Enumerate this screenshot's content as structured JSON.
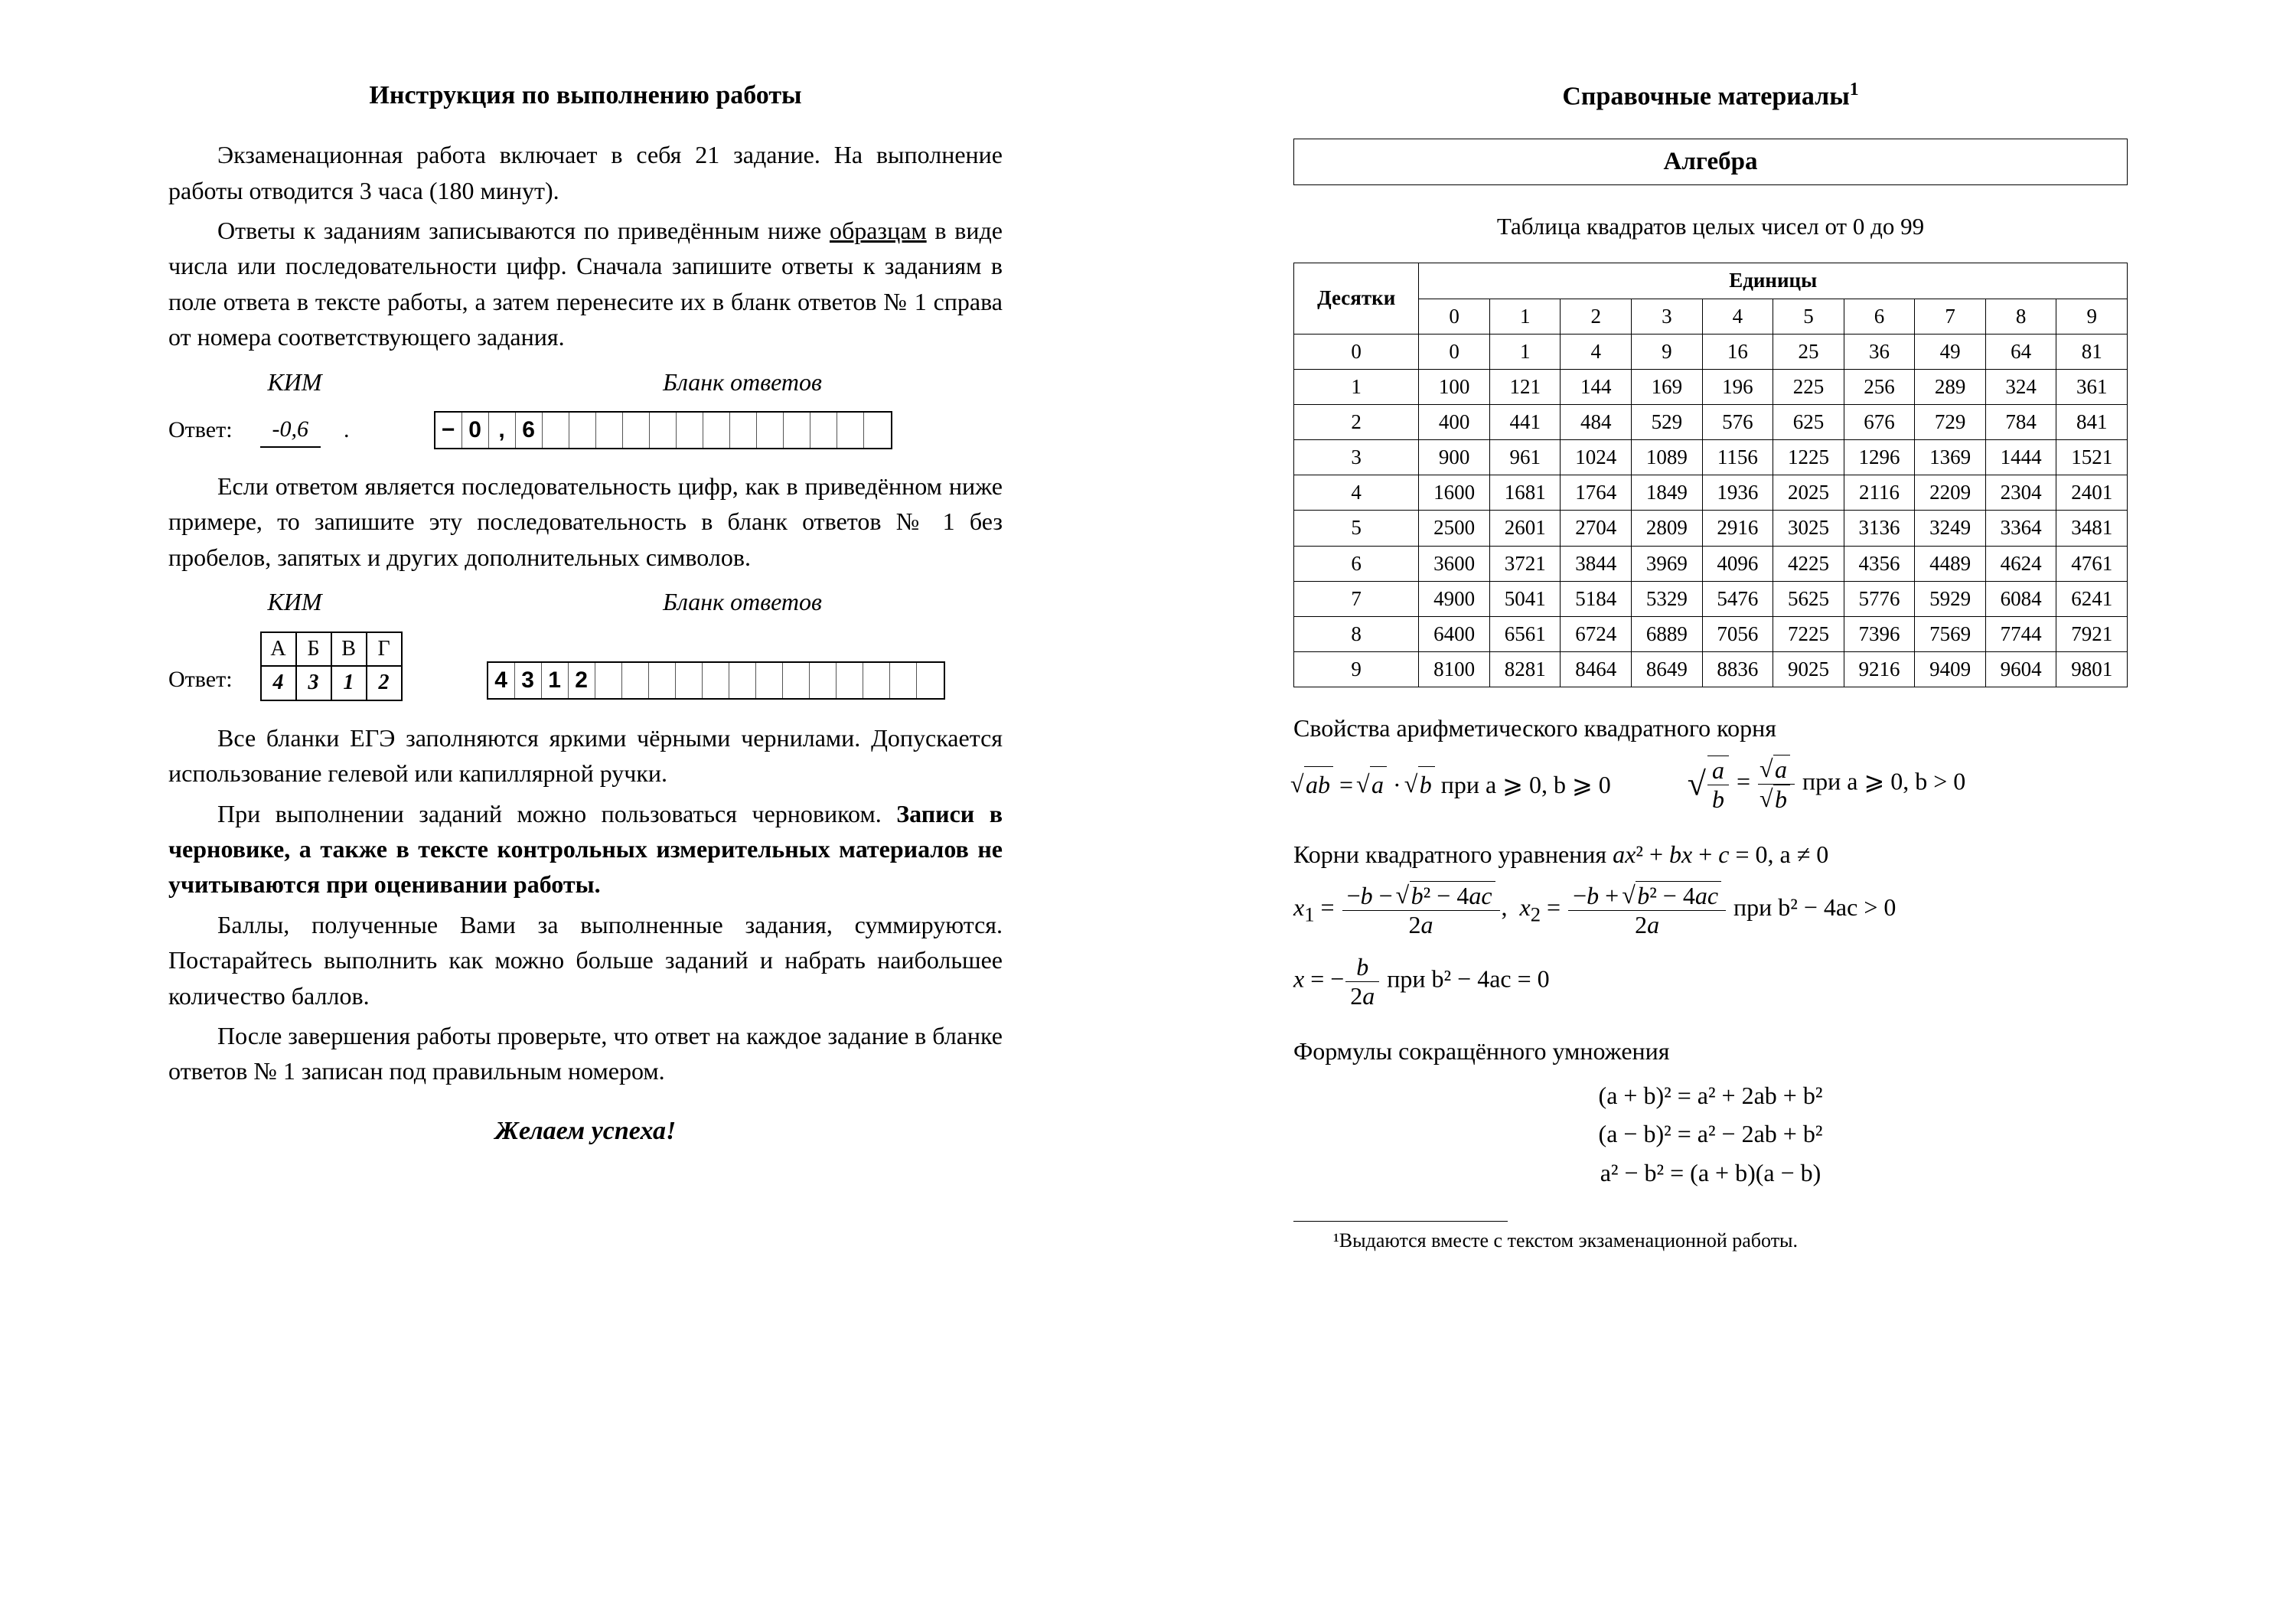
{
  "left": {
    "title": "Инструкция по выполнению работы",
    "p1": "Экзаменационная работа включает в себя 21 задание. На выполнение работы отводится 3 часа (180 минут).",
    "p2a": "Ответы к заданиям записываются по приведённым ниже ",
    "p2underlined": "образцам",
    "p2b": " в виде числа или последовательности цифр. Сначала запишите ответы к заданиям в поле ответа в тексте работы, а затем перенесите их в бланк ответов № 1 справа от номера соответствующего задания.",
    "kim_label": "КИМ",
    "blank_label": "Бланк ответов",
    "answer_label": "Ответ:",
    "answer1_value": "-0,6",
    "blank1_cells": [
      "−",
      "0",
      ",",
      "6",
      "",
      "",
      "",
      "",
      "",
      "",
      "",
      "",
      "",
      "",
      "",
      "",
      ""
    ],
    "p3": "Если ответом является последовательность цифр, как в приведённом ниже примере, то запишите эту последовательность в бланк ответов № 1 без пробелов, запятых и других дополнительных символов.",
    "abvg_headers": [
      "А",
      "Б",
      "В",
      "Г"
    ],
    "abvg_values": [
      "4",
      "3",
      "1",
      "2"
    ],
    "blank2_cells": [
      "4",
      "3",
      "1",
      "2",
      "",
      "",
      "",
      "",
      "",
      "",
      "",
      "",
      "",
      "",
      "",
      "",
      ""
    ],
    "p4": "Все бланки ЕГЭ заполняются яркими чёрными чернилами. Допускается использование гелевой или капиллярной ручки.",
    "p5a": "При выполнении заданий можно пользоваться черновиком. ",
    "p5bold": "Записи в черновике, а также в тексте контрольных измерительных материалов не учитываются при оценивании работы.",
    "p6": "Баллы, полученные Вами за выполненные задания, суммируются. Постарайтесь выполнить как можно больше заданий и набрать наибольшее количество баллов.",
    "p7": "После завершения работы проверьте, что ответ на каждое задание в бланке ответов № 1 записан под правильным номером.",
    "wish": "Желаем успеха!"
  },
  "right": {
    "title": "Справочные материалы",
    "section": "Алгебра",
    "squares_title": "Таблица квадратов целых чисел от 0 до 99",
    "header_tens": "Десятки",
    "header_units": "Единицы",
    "col_headers": [
      "0",
      "1",
      "2",
      "3",
      "4",
      "5",
      "6",
      "7",
      "8",
      "9"
    ],
    "rows": [
      {
        "h": "0",
        "v": [
          0,
          1,
          4,
          9,
          16,
          25,
          36,
          49,
          64,
          81
        ]
      },
      {
        "h": "1",
        "v": [
          100,
          121,
          144,
          169,
          196,
          225,
          256,
          289,
          324,
          361
        ]
      },
      {
        "h": "2",
        "v": [
          400,
          441,
          484,
          529,
          576,
          625,
          676,
          729,
          784,
          841
        ]
      },
      {
        "h": "3",
        "v": [
          900,
          961,
          1024,
          1089,
          1156,
          1225,
          1296,
          1369,
          1444,
          1521
        ]
      },
      {
        "h": "4",
        "v": [
          1600,
          1681,
          1764,
          1849,
          1936,
          2025,
          2116,
          2209,
          2304,
          2401
        ]
      },
      {
        "h": "5",
        "v": [
          2500,
          2601,
          2704,
          2809,
          2916,
          3025,
          3136,
          3249,
          3364,
          3481
        ]
      },
      {
        "h": "6",
        "v": [
          3600,
          3721,
          3844,
          3969,
          4096,
          4225,
          4356,
          4489,
          4624,
          4761
        ]
      },
      {
        "h": "7",
        "v": [
          4900,
          5041,
          5184,
          5329,
          5476,
          5625,
          5776,
          5929,
          6084,
          6241
        ]
      },
      {
        "h": "8",
        "v": [
          6400,
          6561,
          6724,
          6889,
          7056,
          7225,
          7396,
          7569,
          7744,
          7921
        ]
      },
      {
        "h": "9",
        "v": [
          8100,
          8281,
          8464,
          8649,
          8836,
          9025,
          9216,
          9409,
          9604,
          9801
        ]
      }
    ],
    "sqrt_title": "Свойства арифметического квадратного корня",
    "roots_title_a": "Корни квадратного уравнения ",
    "roots_title_b": ",  a ≠ 0",
    "cond_sqrt1": "  при  a ⩾ 0, b ⩾ 0",
    "cond_sqrt2": "  при  a ⩾ 0, b > 0",
    "cond_disc_pos": "  при  b² − 4ac > 0",
    "cond_disc_zero": "  при  b² − 4ac = 0",
    "mult_title": "Формулы сокращённого умножения",
    "mult_f1": "(a + b)² = a² + 2ab + b²",
    "mult_f2": "(a − b)² = a² − 2ab + b²",
    "mult_f3": "a² − b² = (a + b)(a − b)",
    "footnote": "¹Выдаются вместе с текстом экзаменационной работы."
  }
}
